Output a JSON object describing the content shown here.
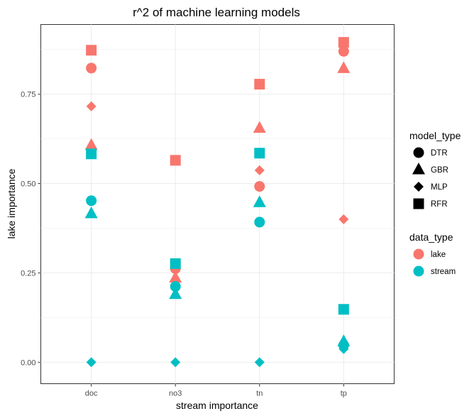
{
  "chart_data": {
    "type": "scatter",
    "title": "r^2 of machine learning models",
    "xlabel": "stream importance",
    "ylabel": "lake importance",
    "categories": [
      "doc",
      "no3",
      "tn",
      "tp"
    ],
    "ylim": [
      -0.06,
      0.945
    ],
    "yticks": [
      0.0,
      0.25,
      0.5,
      0.75
    ],
    "ytick_labels": [
      "0.00",
      "0.25",
      "0.50",
      "0.75"
    ],
    "grid": true,
    "legend_position": "right",
    "colors": {
      "lake": "#F8766D",
      "stream": "#00BFC4"
    },
    "shapes": {
      "DTR": "circle",
      "GBR": "triangle",
      "MLP": "diamond",
      "RFR": "square"
    },
    "legends": [
      {
        "title": "model_type",
        "entries": [
          "DTR",
          "GBR",
          "MLP",
          "RFR"
        ]
      },
      {
        "title": "data_type",
        "entries": [
          "lake",
          "stream"
        ]
      }
    ],
    "series": [
      {
        "model": "DTR",
        "data_type": "lake",
        "values": [
          0.823,
          0.262,
          0.492,
          0.87
        ]
      },
      {
        "model": "GBR",
        "data_type": "lake",
        "values": [
          0.607,
          0.236,
          0.655,
          0.822
        ]
      },
      {
        "model": "MLP",
        "data_type": "lake",
        "values": [
          0.716,
          0.228,
          0.537,
          0.4
        ]
      },
      {
        "model": "RFR",
        "data_type": "lake",
        "values": [
          0.873,
          0.565,
          0.778,
          0.895
        ]
      },
      {
        "model": "DTR",
        "data_type": "stream",
        "values": [
          0.452,
          0.212,
          0.392,
          0.048
        ]
      },
      {
        "model": "GBR",
        "data_type": "stream",
        "values": [
          0.416,
          0.19,
          0.447,
          0.058
        ]
      },
      {
        "model": "MLP",
        "data_type": "stream",
        "values": [
          0.0,
          0.0,
          0.0,
          0.037
        ]
      },
      {
        "model": "RFR",
        "data_type": "stream",
        "values": [
          0.583,
          0.276,
          0.585,
          0.148
        ]
      }
    ]
  }
}
